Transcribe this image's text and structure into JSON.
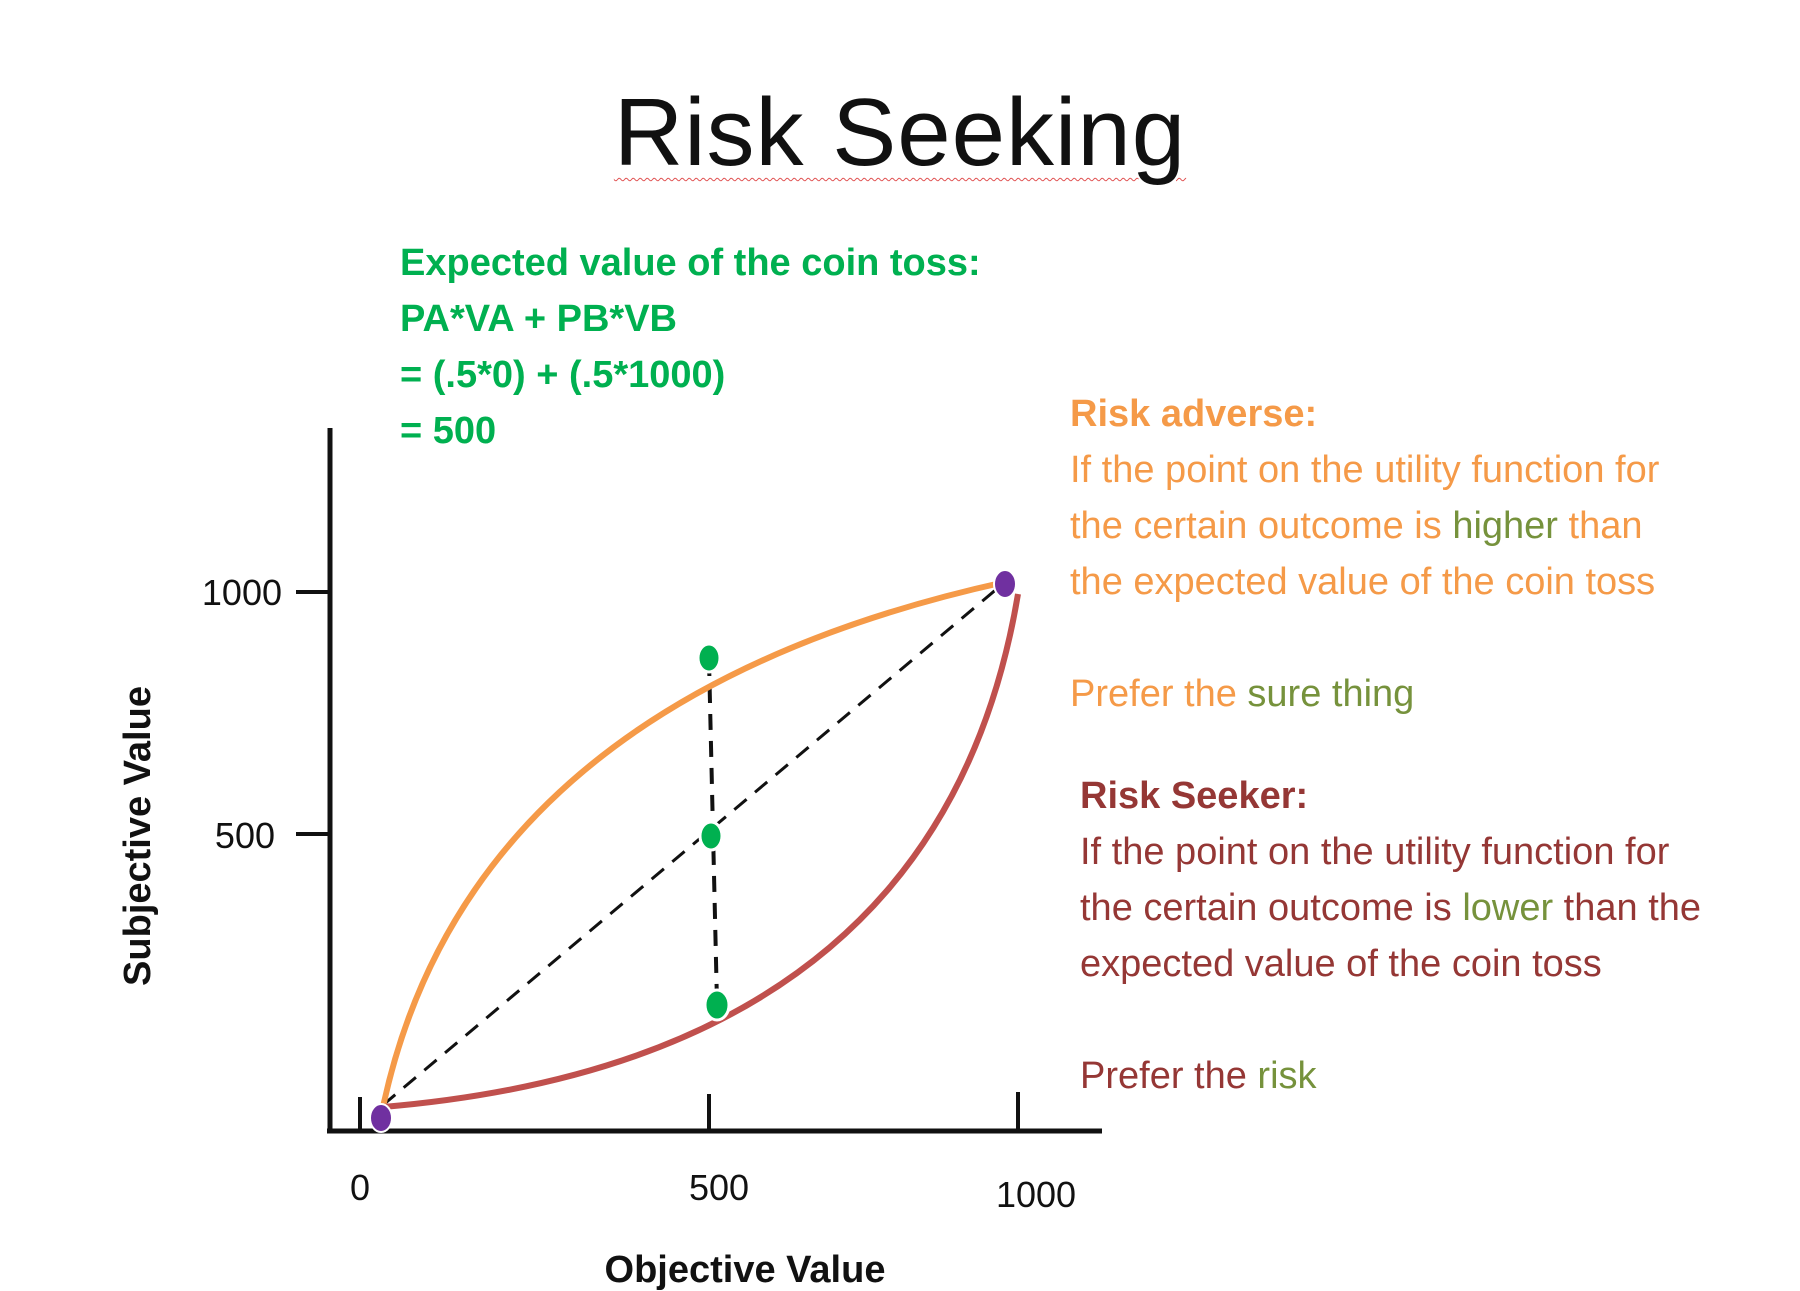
{
  "title": "Risk Seeking",
  "expected_value": {
    "line1": "Expected value of the coin toss:",
    "line2": "PA*VA + PB*VB",
    "line3": "= (.5*0) + (.5*1000)",
    "line4": "= 500"
  },
  "risk_adverse": {
    "heading": "Risk adverse:",
    "line1": "If the point on the utility function for",
    "line2_pre": "the certain outcome is ",
    "line2_highlight": "higher",
    "line2_post": " than",
    "line3": "the expected value of the coin toss",
    "prefer_pre": "Prefer the ",
    "prefer_highlight": "sure thing"
  },
  "risk_seeker": {
    "heading": "Risk Seeker:",
    "line1": "If the point on the utility function for",
    "line2_pre": "the certain outcome is ",
    "line2_highlight": "lower",
    "line2_post": " than the",
    "line3": "expected value of the coin toss",
    "prefer_pre": "Prefer the ",
    "prefer_highlight": "risk"
  },
  "chart": {
    "x_axis_title": "Objective Value",
    "y_axis_title": "Subjective Value",
    "x_ticks": [
      "0",
      "500",
      "1000"
    ],
    "y_ticks": [
      "1000",
      "500"
    ]
  },
  "colors": {
    "risk_averse_curve": "#f59a48",
    "risk_seeking_curve": "#c0504d",
    "points_green": "#00b050",
    "endpoints_purple": "#7030a0",
    "dashed": "#111111"
  },
  "chart_data": {
    "type": "line",
    "xlabel": "Objective Value",
    "ylabel": "Subjective Value",
    "series": [
      {
        "values": [
          [
            0,
            0
          ],
          [
            500,
            850
          ],
          [
            1000,
            1000
          ]
        ]
      },
      {
        "values": [
          [
            0,
            0
          ],
          [
            500,
            150
          ],
          [
            1000,
            1000
          ]
        ]
      },
      {
        "values": [
          [
            0,
            0
          ],
          [
            500,
            500
          ],
          [
            1000,
            1000
          ]
        ]
      }
    ],
    "highlighted_points": [
      [
        500,
        850
      ],
      [
        500,
        500
      ],
      [
        500,
        150
      ]
    ],
    "endpoints": [
      [
        0,
        0
      ],
      [
        1000,
        1000
      ]
    ]
  }
}
